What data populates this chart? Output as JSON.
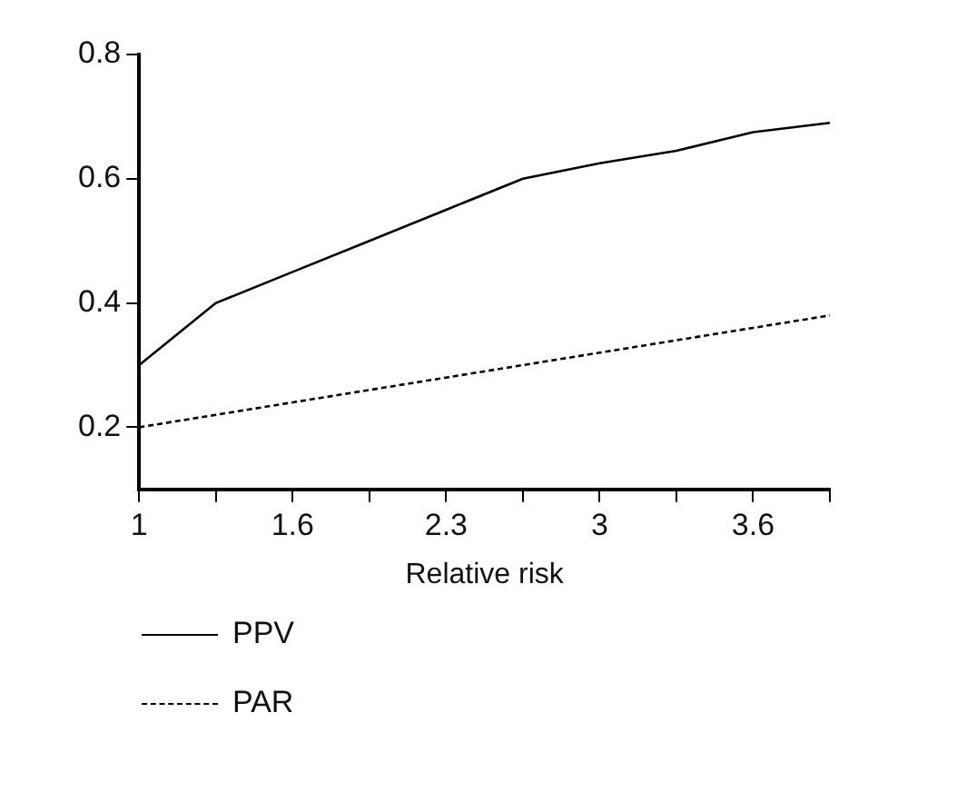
{
  "chart_data": {
    "type": "line",
    "xlabel": "Relative risk",
    "categories": [
      "1",
      null,
      "1.6",
      null,
      "2.3",
      null,
      "3",
      null,
      "3.6",
      null
    ],
    "series": [
      {
        "name": "PPV",
        "color": "#000000",
        "line_style": "solid",
        "values": [
          0.3,
          0.4,
          0.45,
          0.5,
          0.55,
          0.6,
          0.625,
          0.645,
          0.675,
          0.69
        ]
      },
      {
        "name": "PAR",
        "color": "#000000",
        "line_style": "dashed",
        "values": [
          0.2,
          0.22,
          0.24,
          0.26,
          0.28,
          0.3,
          0.32,
          0.34,
          0.36,
          0.38
        ]
      }
    ],
    "ylim": [
      0.1,
      0.8
    ],
    "yticks": [
      0.2,
      0.4,
      0.6,
      0.8
    ],
    "grid": false,
    "legend": "bottom left",
    "marker": "none"
  }
}
